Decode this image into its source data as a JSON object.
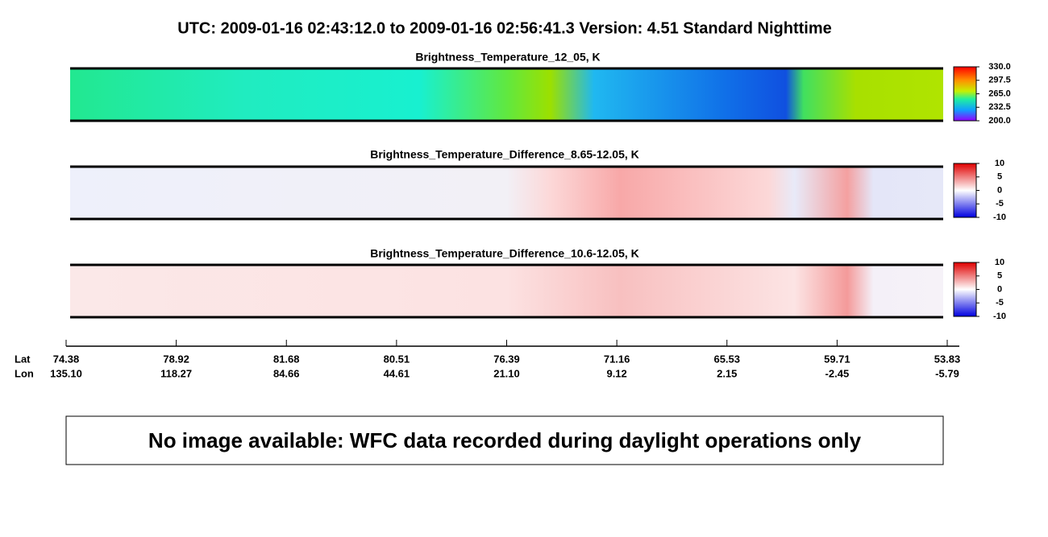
{
  "header": {
    "title": "UTC:  2009-01-16   02:43:12.0  to  2009-01-16   02:56:41.3    Version: 4.51  Standard Nighttime"
  },
  "panels": [
    {
      "title": "Brightness_Temperature_12_05, K",
      "colorbar_labels": [
        "330.0",
        "297.5",
        "265.0",
        "232.5",
        "200.0"
      ]
    },
    {
      "title": "Brightness_Temperature_Difference_8.65-12.05, K",
      "colorbar_labels": [
        "10",
        "5",
        "0",
        "-5",
        "-10"
      ]
    },
    {
      "title": "Brightness_Temperature_Difference_10.6-12.05, K",
      "colorbar_labels": [
        "10",
        "5",
        "0",
        "-5",
        "-10"
      ]
    }
  ],
  "axis": {
    "lat_label": "Lat",
    "lon_label": "Lon",
    "lat": [
      "74.38",
      "78.92",
      "81.68",
      "80.51",
      "76.39",
      "71.16",
      "65.53",
      "59.71",
      "53.83"
    ],
    "lon": [
      "135.10",
      "118.27",
      "84.66",
      "44.61",
      "21.10",
      "9.12",
      "2.15",
      "-2.45",
      "-5.79"
    ]
  },
  "notice": "No image available: WFC data recorded during daylight operations only"
}
